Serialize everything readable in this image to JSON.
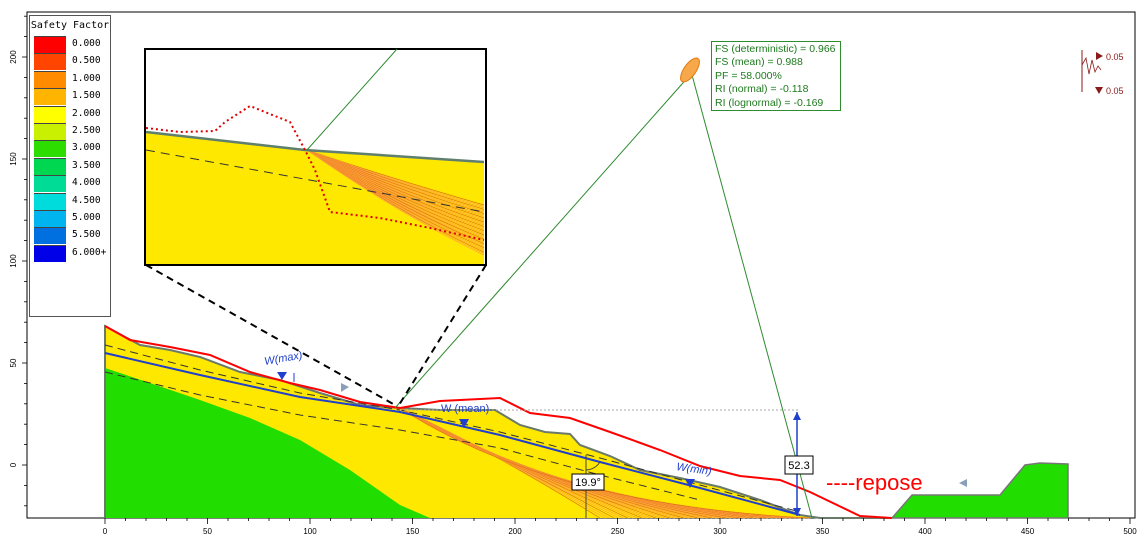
{
  "legend": {
    "title": "Safety Factor",
    "entries": [
      {
        "label": "0.000",
        "color": "#ff0000"
      },
      {
        "label": "0.500",
        "color": "#ff4500"
      },
      {
        "label": "1.000",
        "color": "#ff8c00"
      },
      {
        "label": "1.500",
        "color": "#ffb400"
      },
      {
        "label": "2.000",
        "color": "#ffff00"
      },
      {
        "label": "2.500",
        "color": "#c8f000"
      },
      {
        "label": "3.000",
        "color": "#2edd00"
      },
      {
        "label": "3.500",
        "color": "#00d750"
      },
      {
        "label": "4.000",
        "color": "#00dc96"
      },
      {
        "label": "4.500",
        "color": "#00dcdc"
      },
      {
        "label": "5.000",
        "color": "#00b4f0"
      },
      {
        "label": "5.500",
        "color": "#0070e0"
      },
      {
        "label": "6.000+",
        "color": "#0000e8"
      }
    ]
  },
  "results": {
    "lines": [
      "FS (deterministic) = 0.966",
      "FS (mean) = 0.988",
      "PF = 58.000%",
      "RI (normal) = -0.118",
      "RI (lognormal) = -0.169"
    ]
  },
  "axes": {
    "x_ticks": [
      "0",
      "50",
      "100",
      "150",
      "200",
      "250",
      "300",
      "350",
      "400",
      "450",
      "500"
    ],
    "y_ticks": [
      "0",
      "50",
      "100",
      "150",
      "200"
    ]
  },
  "labels": {
    "w_max": "W(max)",
    "w_mean": "W (mean)",
    "w_min": "W(min)",
    "angle": "19.9°",
    "height": "52.3",
    "repose": "----repose"
  },
  "seismic": {
    "horizontal": "0.05",
    "vertical": "0.05"
  },
  "colors": {
    "ground_green": "#22dd00",
    "layer_yellow": "#ffe800",
    "slip_orange": "#ff8c1a",
    "water_blue": "#1f3fcc",
    "slope_line_red": "#ff0000",
    "results_green": "#2e8b2e"
  }
}
